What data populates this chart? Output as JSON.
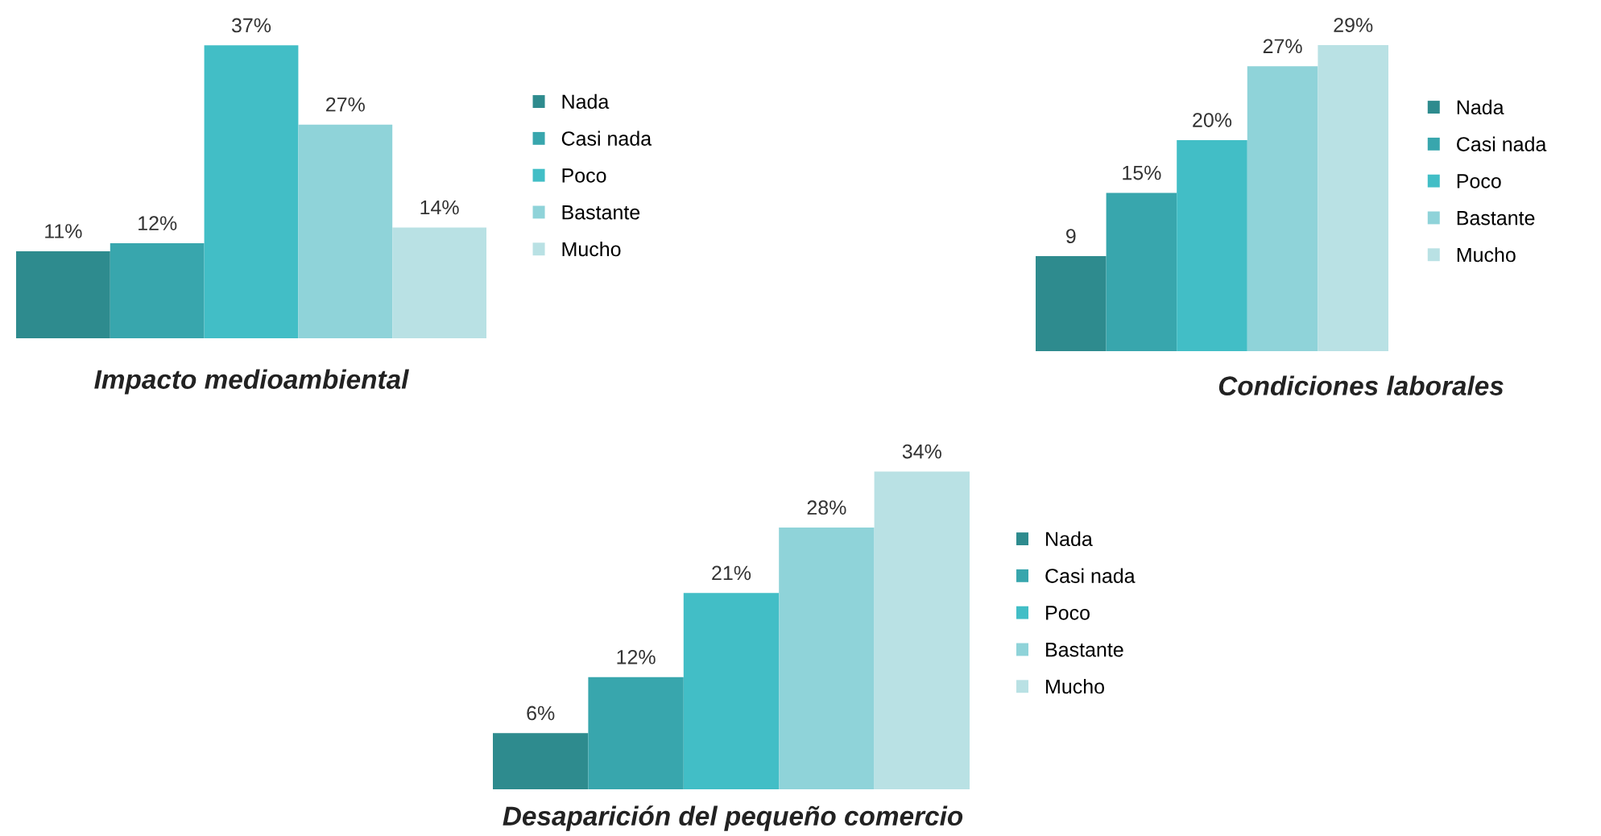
{
  "chart_data": [
    {
      "type": "bar",
      "title": "Impacto medioambiental",
      "categories": [
        null
      ],
      "legend": "right",
      "tick_labels": false,
      "series": [
        {
          "name": "Nada",
          "color": "#2e8b8e",
          "values": [
            11
          ],
          "value_labels": [
            "11%"
          ]
        },
        {
          "name": "Casi nada",
          "color": "#38a6ad",
          "values": [
            12
          ],
          "value_labels": [
            "12%"
          ]
        },
        {
          "name": "Poco",
          "color": "#42bec6",
          "values": [
            37
          ],
          "value_labels": [
            "37%"
          ]
        },
        {
          "name": "Bastante",
          "color": "#8fd3d9",
          "values": [
            27
          ],
          "value_labels": [
            "27%"
          ]
        },
        {
          "name": "Mucho",
          "color": "#b9e1e4",
          "values": [
            14
          ],
          "value_labels": [
            "14%"
          ]
        }
      ]
    },
    {
      "type": "bar",
      "title": "Condiciones laborales",
      "categories": [
        null
      ],
      "legend": "right",
      "tick_labels": false,
      "series": [
        {
          "name": "Nada",
          "color": "#2e8b8e",
          "values": [
            9
          ],
          "value_labels": [
            "9"
          ]
        },
        {
          "name": "Casi nada",
          "color": "#38a6ad",
          "values": [
            15
          ],
          "value_labels": [
            "15%"
          ]
        },
        {
          "name": "Poco",
          "color": "#42bec6",
          "values": [
            20
          ],
          "value_labels": [
            "20%"
          ]
        },
        {
          "name": "Bastante",
          "color": "#8fd3d9",
          "values": [
            27
          ],
          "value_labels": [
            "27%"
          ]
        },
        {
          "name": "Mucho",
          "color": "#b9e1e4",
          "values": [
            29
          ],
          "value_labels": [
            "29%"
          ]
        }
      ]
    },
    {
      "type": "bar",
      "title": "Desaparición del pequeño comercio",
      "categories": [
        null
      ],
      "legend": "right",
      "tick_labels": false,
      "series": [
        {
          "name": "Nada",
          "color": "#2e8b8e",
          "values": [
            6
          ],
          "value_labels": [
            "6%"
          ]
        },
        {
          "name": "Casi nada",
          "color": "#38a6ad",
          "values": [
            12
          ],
          "value_labels": [
            "12%"
          ]
        },
        {
          "name": "Poco",
          "color": "#42bec6",
          "values": [
            21
          ],
          "value_labels": [
            "21%"
          ]
        },
        {
          "name": "Bastante",
          "color": "#8fd3d9",
          "values": [
            28
          ],
          "value_labels": [
            "28%"
          ]
        },
        {
          "name": "Mucho",
          "color": "#b9e1e4",
          "values": [
            34
          ],
          "value_labels": [
            "34%"
          ]
        }
      ]
    }
  ]
}
